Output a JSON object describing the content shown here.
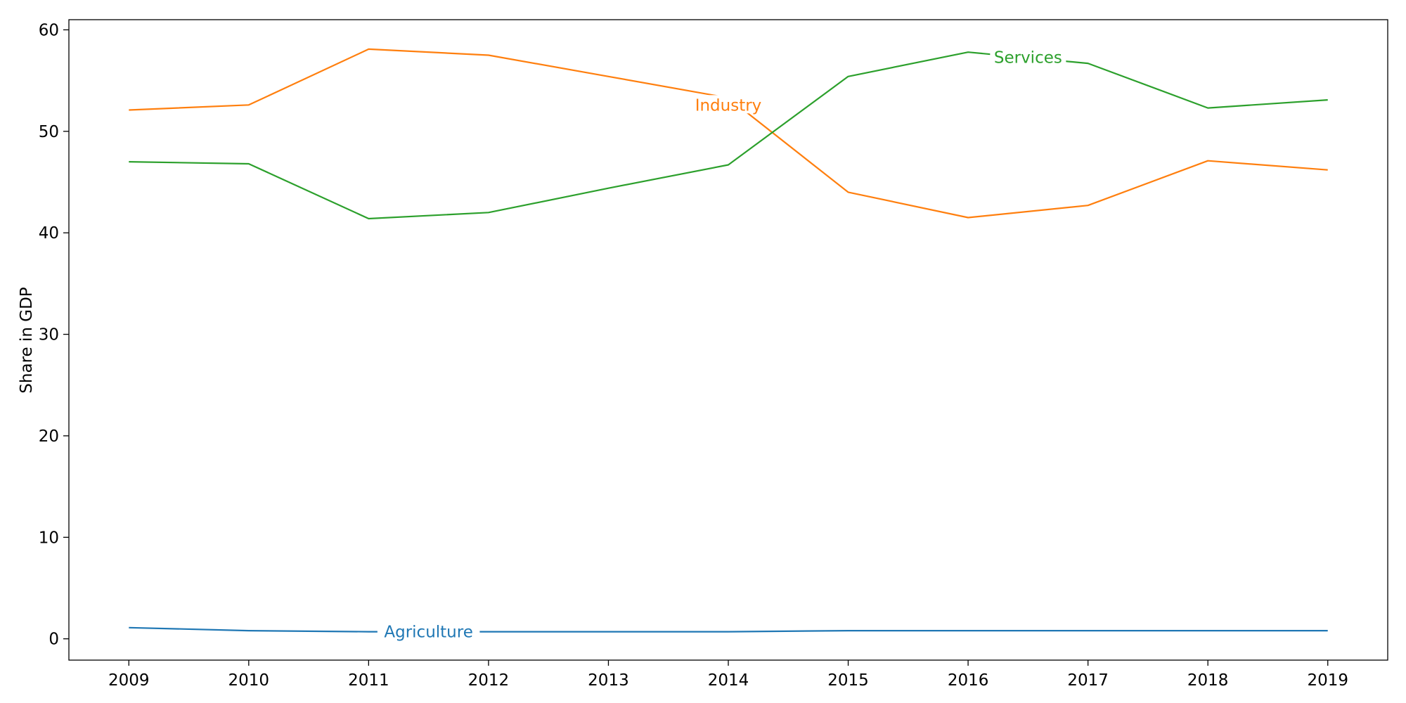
{
  "chart_data": {
    "type": "line",
    "title": "",
    "xlabel": "",
    "ylabel": "Share in GDP",
    "x": [
      2009,
      2010,
      2011,
      2012,
      2013,
      2014,
      2015,
      2016,
      2017,
      2018,
      2019
    ],
    "xlim": [
      2008.5,
      2019.5
    ],
    "ylim": [
      -2.1,
      61.0
    ],
    "yticks": [
      0,
      10,
      20,
      30,
      40,
      50,
      60
    ],
    "grid": false,
    "legend": "none",
    "series": [
      {
        "name": "Agriculture",
        "color": "#1f77b4",
        "values": [
          1.1,
          0.8,
          0.7,
          0.7,
          0.7,
          0.7,
          0.8,
          0.8,
          0.8,
          0.8,
          0.8
        ],
        "label_x": 2011.5,
        "label_y": 0.7
      },
      {
        "name": "Industry",
        "color": "#ff7f0e",
        "values": [
          52.1,
          52.6,
          58.1,
          57.5,
          55.4,
          53.3,
          44.0,
          41.5,
          42.7,
          47.1,
          46.2
        ],
        "label_x": 2014.0,
        "label_y": 52.6
      },
      {
        "name": "Services",
        "color": "#2ca02c",
        "values": [
          47.0,
          46.8,
          41.4,
          42.0,
          44.4,
          46.7,
          55.4,
          57.8,
          56.7,
          52.3,
          53.1
        ],
        "label_x": 2016.5,
        "label_y": 57.3
      }
    ]
  }
}
